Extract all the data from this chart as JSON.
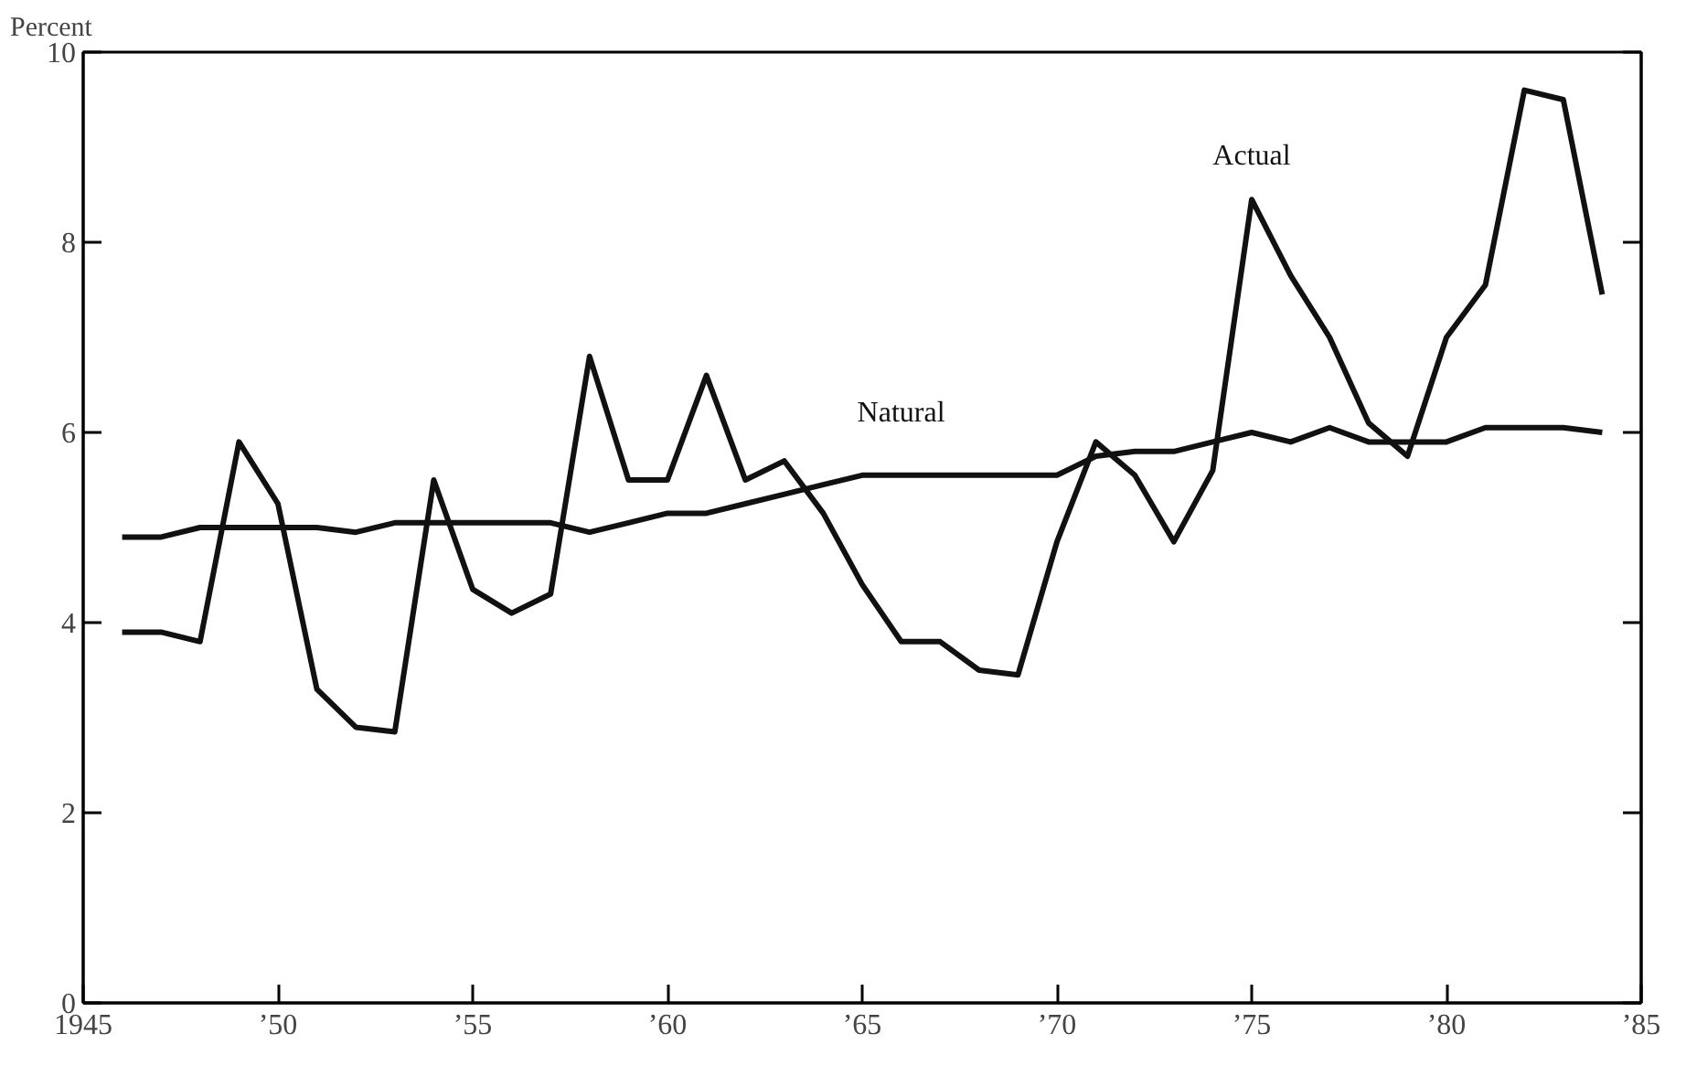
{
  "chart_data": {
    "type": "line",
    "ylabel": "Percent",
    "x": [
      1946,
      1947,
      1948,
      1949,
      1950,
      1951,
      1952,
      1953,
      1954,
      1955,
      1956,
      1957,
      1958,
      1959,
      1960,
      1961,
      1962,
      1963,
      1964,
      1965,
      1966,
      1967,
      1968,
      1969,
      1970,
      1971,
      1972,
      1973,
      1974,
      1975,
      1976,
      1977,
      1978,
      1979,
      1980,
      1981,
      1982,
      1983,
      1984
    ],
    "series": [
      {
        "name": "Actual",
        "color": "#111111",
        "values": [
          3.9,
          3.9,
          3.8,
          5.9,
          5.25,
          3.3,
          2.9,
          2.85,
          5.5,
          4.35,
          4.1,
          4.3,
          6.8,
          5.5,
          5.5,
          6.6,
          5.5,
          5.7,
          5.15,
          4.4,
          3.8,
          3.8,
          3.5,
          3.45,
          4.85,
          5.9,
          5.55,
          4.85,
          5.6,
          8.45,
          7.65,
          7.0,
          6.1,
          5.75,
          7.0,
          7.55,
          9.6,
          9.5,
          7.45
        ]
      },
      {
        "name": "Natural",
        "color": "#111111",
        "values": [
          4.9,
          4.9,
          5.0,
          5.0,
          5.0,
          5.0,
          4.95,
          5.05,
          5.05,
          5.05,
          5.05,
          5.05,
          4.95,
          5.05,
          5.15,
          5.15,
          5.25,
          5.35,
          5.45,
          5.55,
          5.55,
          5.55,
          5.55,
          5.55,
          5.55,
          5.75,
          5.8,
          5.8,
          5.9,
          6.0,
          5.9,
          6.05,
          5.9,
          5.9,
          5.9,
          6.05,
          6.05,
          6.05,
          6.0
        ]
      }
    ],
    "xlim": [
      1945,
      1985
    ],
    "ylim": [
      0,
      10
    ],
    "xticks": [
      1945,
      {
        "value": 1950,
        "label": "’50"
      },
      {
        "value": 1955,
        "label": "’55"
      },
      {
        "value": 1960,
        "label": "’60"
      },
      {
        "value": 1965,
        "label": "’65"
      },
      {
        "value": 1970,
        "label": "’70"
      },
      {
        "value": 1975,
        "label": "’75"
      },
      {
        "value": 1980,
        "label": "’80"
      },
      {
        "value": 1985,
        "label": "’85"
      }
    ],
    "yticks": [
      0,
      2,
      4,
      6,
      8,
      10
    ],
    "grid": false,
    "marker": "none",
    "line_style": "solid"
  }
}
